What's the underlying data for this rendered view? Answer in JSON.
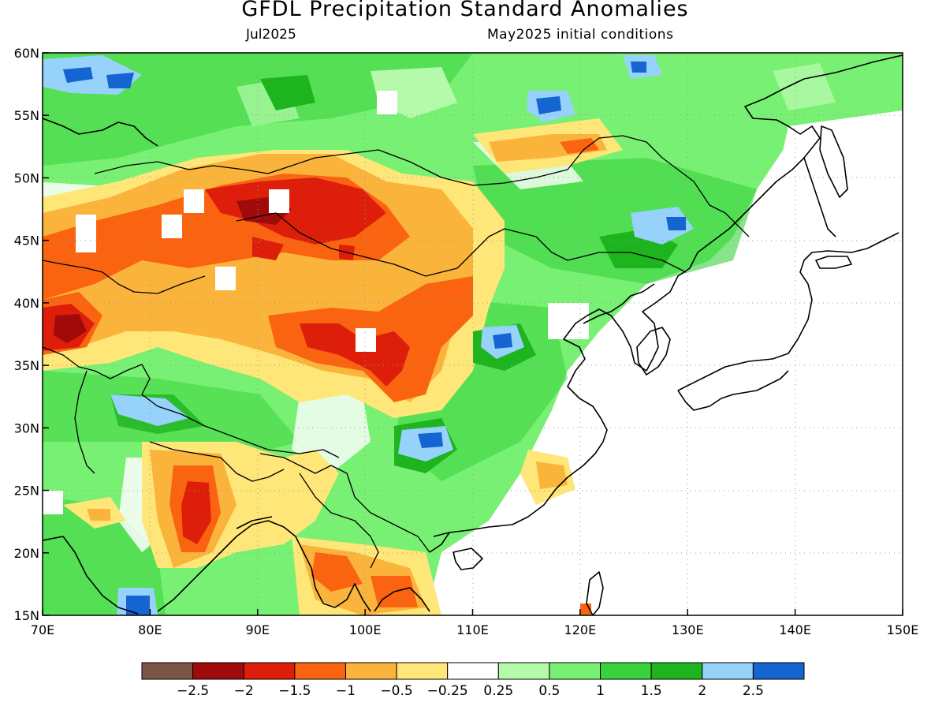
{
  "title": "GFDL Precipitation Standard Anomalies",
  "subtitle_left": "Jul2025",
  "subtitle_right": "May2025 initial conditions",
  "map": {
    "lon_range": [
      70,
      150
    ],
    "lat_range": [
      15,
      60
    ],
    "lon_ticks": [
      "70E",
      "80E",
      "90E",
      "100E",
      "110E",
      "120E",
      "130E",
      "140E",
      "150E"
    ],
    "lat_ticks": [
      "15N",
      "20N",
      "25N",
      "30N",
      "35N",
      "40N",
      "45N",
      "50N",
      "55N",
      "60N"
    ],
    "grid": "dotted"
  },
  "legend": {
    "colors": [
      "#7a5548",
      "#a00a0a",
      "#dc1e0a",
      "#fa6410",
      "#fab43c",
      "#ffe678",
      "#ffffff",
      "#b4faaa",
      "#78f073",
      "#37d23c",
      "#1eb41e",
      "#96d2fa",
      "#1464d2"
    ],
    "labels": [
      "−2.5",
      "−2",
      "−1.5",
      "−1",
      "−0.5",
      "−0.25",
      "0.25",
      "0.5",
      "1",
      "1.5",
      "2",
      "2.5"
    ]
  },
  "colors": {
    "background": "#ffffff",
    "coastline": "#000000"
  }
}
